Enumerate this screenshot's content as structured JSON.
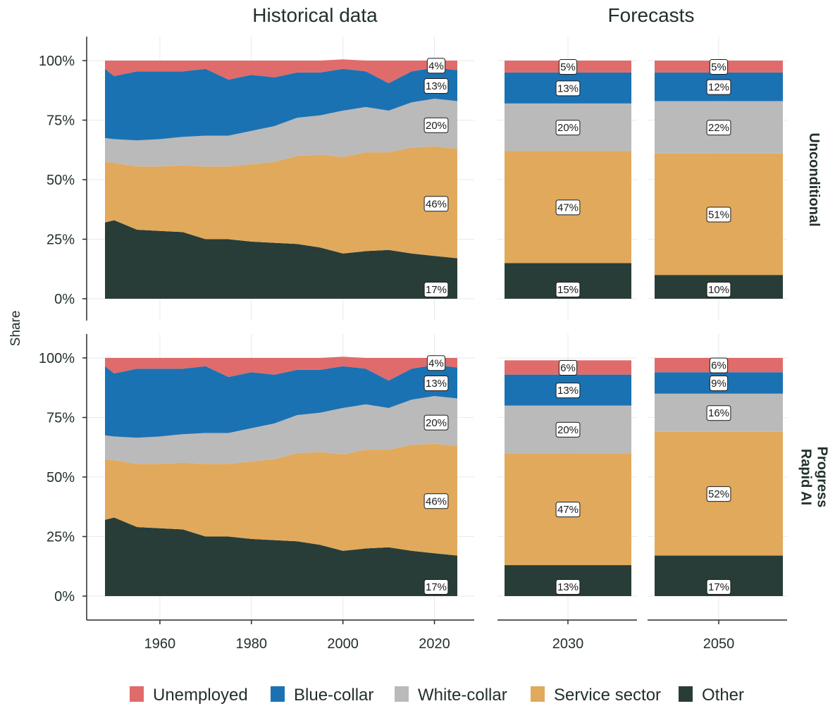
{
  "titles": {
    "historical": "Historical data",
    "forecasts": "Forecasts"
  },
  "ylabel": "Share",
  "scenarios": [
    "Unconditional",
    "Rapid AI Progress"
  ],
  "scenario_lines": [
    [
      "Unconditional"
    ],
    [
      "Rapid AI",
      "Progress"
    ]
  ],
  "yticks": [
    "0%",
    "25%",
    "50%",
    "75%",
    "100%"
  ],
  "xticks_hist": [
    "1960",
    "1980",
    "2000",
    "2020"
  ],
  "forecast_years": [
    "2030",
    "2050"
  ],
  "categories": [
    "Other",
    "Service sector",
    "White-collar",
    "Blue-collar",
    "Unemployed"
  ],
  "legend_order": [
    "Unemployed",
    "Blue-collar",
    "White-collar",
    "Service sector",
    "Other"
  ],
  "legend_labels": [
    "Unemployed",
    "Blue-collar",
    "White-collar",
    "Service sector",
    "Other"
  ],
  "colors": {
    "Other": "#283d38",
    "Service sector": "#e1a95c",
    "White-collar": "#bababa",
    "Blue-collar": "#1b72b2",
    "Unemployed": "#e06b6b"
  },
  "chart_data": {
    "type": "area",
    "ylabel": "Share",
    "ylim": [
      0,
      1
    ],
    "historical": {
      "x": [
        1948,
        1950,
        1955,
        1960,
        1965,
        1970,
        1975,
        1980,
        1985,
        1990,
        1995,
        2000,
        2005,
        2010,
        2015,
        2020,
        2025
      ],
      "series": [
        {
          "name": "Other",
          "values": [
            0.32,
            0.33,
            0.29,
            0.285,
            0.28,
            0.25,
            0.25,
            0.24,
            0.235,
            0.23,
            0.215,
            0.19,
            0.2,
            0.205,
            0.19,
            0.18,
            0.17
          ]
        },
        {
          "name": "Service sector",
          "values": [
            0.255,
            0.24,
            0.265,
            0.27,
            0.28,
            0.305,
            0.305,
            0.325,
            0.34,
            0.37,
            0.39,
            0.405,
            0.415,
            0.41,
            0.445,
            0.46,
            0.46
          ]
        },
        {
          "name": "White-collar",
          "values": [
            0.1,
            0.1,
            0.11,
            0.115,
            0.12,
            0.13,
            0.13,
            0.14,
            0.15,
            0.16,
            0.165,
            0.195,
            0.19,
            0.175,
            0.19,
            0.2,
            0.2
          ]
        },
        {
          "name": "Blue-collar",
          "values": [
            0.29,
            0.265,
            0.29,
            0.285,
            0.275,
            0.28,
            0.235,
            0.235,
            0.205,
            0.19,
            0.18,
            0.175,
            0.15,
            0.115,
            0.13,
            0.13,
            0.13
          ]
        },
        {
          "name": "Unemployed",
          "values": [
            0.035,
            0.065,
            0.045,
            0.045,
            0.045,
            0.035,
            0.08,
            0.06,
            0.07,
            0.05,
            0.05,
            0.04,
            0.045,
            0.095,
            0.045,
            0.03,
            0.04
          ]
        }
      ]
    },
    "panels": [
      {
        "scenario": "Unconditional",
        "hist_labels": [
          "17%",
          "46%",
          "20%",
          "13%",
          "4%"
        ],
        "forecasts": [
          {
            "year": "2030",
            "values": [
              0.15,
              0.47,
              0.2,
              0.13,
              0.05
            ],
            "labels": [
              "15%",
              "47%",
              "20%",
              "13%",
              "5%"
            ]
          },
          {
            "year": "2050",
            "values": [
              0.1,
              0.51,
              0.22,
              0.12,
              0.05
            ],
            "labels": [
              "10%",
              "51%",
              "22%",
              "12%",
              "5%"
            ]
          }
        ]
      },
      {
        "scenario": "Rapid AI Progress",
        "hist_labels": [
          "17%",
          "46%",
          "20%",
          "13%",
          "4%"
        ],
        "forecasts": [
          {
            "year": "2030",
            "values": [
              0.13,
              0.47,
              0.2,
              0.13,
              0.06
            ],
            "labels": [
              "13%",
              "47%",
              "20%",
              "13%",
              "6%"
            ]
          },
          {
            "year": "2050",
            "values": [
              0.17,
              0.52,
              0.16,
              0.09,
              0.06
            ],
            "labels": [
              "17%",
              "52%",
              "16%",
              "9%",
              "6%"
            ]
          }
        ]
      }
    ]
  }
}
